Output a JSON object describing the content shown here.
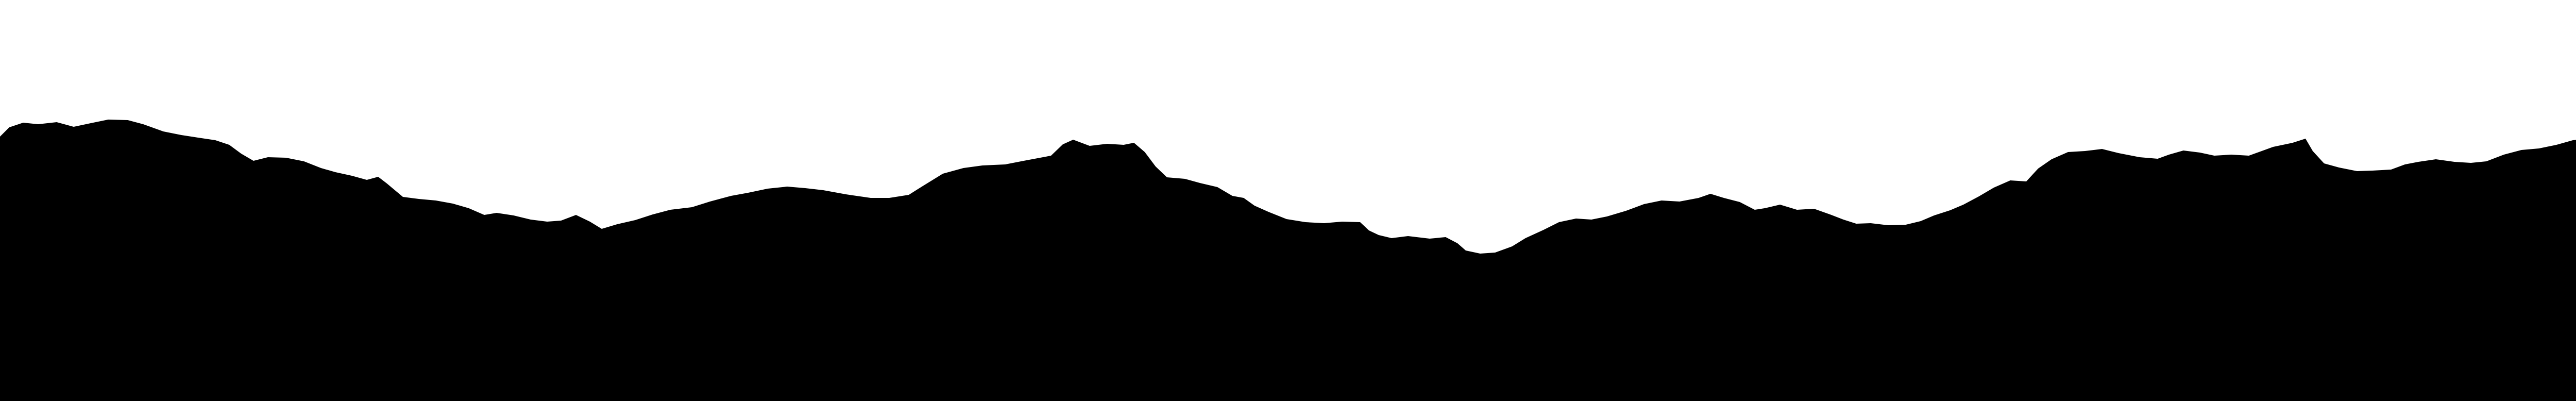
{
  "scene": {
    "background_color": "#ffffff",
    "silhouette_color": "#000000",
    "shape": "rough-terrain-silhouette"
  }
}
